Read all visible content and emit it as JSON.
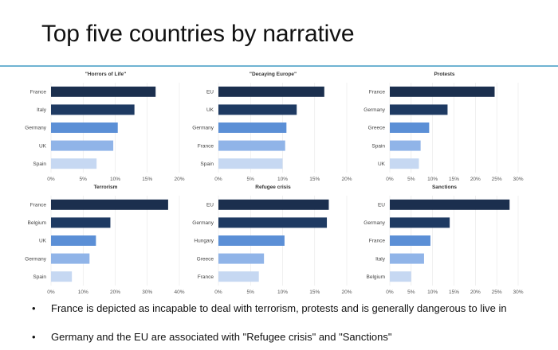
{
  "slide": {
    "title": "Top five countries by narrative",
    "bullets": [
      "France is depicted as incapable to deal with terrorism, protests and is generally dangerous to live in",
      "Germany and the EU are associated with \"Refugee crisis\" and \"Sanctions\""
    ],
    "bullet_glyph": "•"
  },
  "colors": [
    "#1b2f4e",
    "#1e3a62",
    "#5b8fd6",
    "#90b4e8",
    "#c6d8f2"
  ],
  "chart_data": [
    {
      "type": "bar",
      "title": "\"Horrors of Life\"",
      "categories": [
        "France",
        "Italy",
        "Germany",
        "UK",
        "Spain"
      ],
      "values": [
        16.3,
        13.0,
        10.4,
        9.7,
        7.1
      ],
      "xlim": [
        0,
        20
      ],
      "ticks": [
        0,
        5,
        10,
        15,
        20
      ],
      "tick_labels": [
        "0%",
        "5%",
        "10%",
        "15%",
        "20%"
      ]
    },
    {
      "type": "bar",
      "title": "\"Decaying Europe\"",
      "categories": [
        "EU",
        "UK",
        "Germany",
        "France",
        "Spain"
      ],
      "values": [
        16.5,
        12.2,
        10.6,
        10.4,
        10.0
      ],
      "xlim": [
        0,
        20
      ],
      "ticks": [
        0,
        5,
        10,
        15,
        20
      ],
      "tick_labels": [
        "0%",
        "5%",
        "10%",
        "15%",
        "20%"
      ]
    },
    {
      "type": "bar",
      "title": "Protests",
      "categories": [
        "France",
        "Germany",
        "Greece",
        "Spain",
        "UK"
      ],
      "values": [
        24.5,
        13.5,
        9.2,
        7.2,
        6.8
      ],
      "xlim": [
        0,
        30
      ],
      "ticks": [
        0,
        5,
        10,
        15,
        20,
        25,
        30
      ],
      "tick_labels": [
        "0%",
        "5%",
        "10%",
        "15%",
        "20%",
        "25%",
        "30%"
      ]
    },
    {
      "type": "bar",
      "title": "Terrorism",
      "categories": [
        "France",
        "Belgium",
        "UK",
        "Germany",
        "Spain"
      ],
      "values": [
        36.5,
        18.5,
        14.0,
        12.0,
        6.5
      ],
      "xlim": [
        0,
        40
      ],
      "ticks": [
        0,
        10,
        20,
        30,
        40
      ],
      "tick_labels": [
        "0%",
        "10%",
        "20%",
        "30%",
        "40%"
      ]
    },
    {
      "type": "bar",
      "title": "Refugee crisis",
      "categories": [
        "EU",
        "Germany",
        "Hungary",
        "Greece",
        "France"
      ],
      "values": [
        17.2,
        16.9,
        10.3,
        7.1,
        6.3
      ],
      "xlim": [
        0,
        20
      ],
      "ticks": [
        0,
        5,
        10,
        15,
        20
      ],
      "tick_labels": [
        "0%",
        "5%",
        "10%",
        "15%",
        "20%"
      ]
    },
    {
      "type": "bar",
      "title": "Sanctions",
      "categories": [
        "EU",
        "Germany",
        "France",
        "Italy",
        "Belgium"
      ],
      "values": [
        28.0,
        14.0,
        9.5,
        8.0,
        5.0
      ],
      "xlim": [
        0,
        30
      ],
      "ticks": [
        0,
        5,
        10,
        15,
        20,
        25,
        30
      ],
      "tick_labels": [
        "0%",
        "5%",
        "10%",
        "15%",
        "20%",
        "25%",
        "30%"
      ]
    }
  ]
}
